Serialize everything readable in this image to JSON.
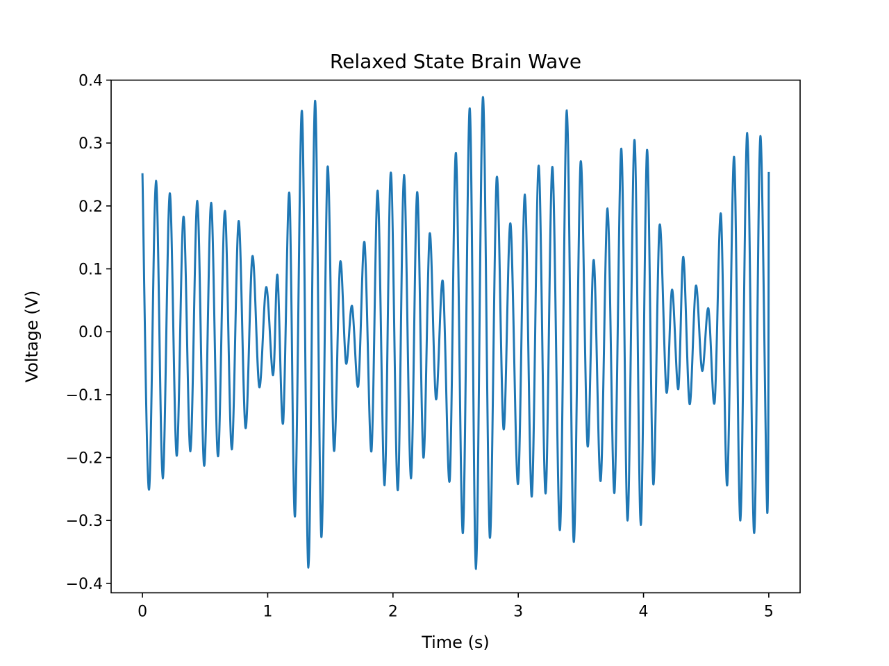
{
  "chart_data": {
    "type": "line",
    "title": "Relaxed State Brain Wave",
    "xlabel": "Time (s)",
    "ylabel": "Voltage (V)",
    "xlim": [
      -0.25,
      5.25
    ],
    "ylim": [
      -0.415,
      0.4
    ],
    "xticks": [
      {
        "value": 0,
        "label": "0"
      },
      {
        "value": 1,
        "label": "1"
      },
      {
        "value": 2,
        "label": "2"
      },
      {
        "value": 3,
        "label": "3"
      },
      {
        "value": 4,
        "label": "4"
      },
      {
        "value": 5,
        "label": "5"
      }
    ],
    "yticks": [
      {
        "value": 0.4,
        "label": "0.4"
      },
      {
        "value": 0.3,
        "label": "0.3"
      },
      {
        "value": 0.2,
        "label": "0.2"
      },
      {
        "value": 0.1,
        "label": "0.1"
      },
      {
        "value": 0.0,
        "label": "0.0"
      },
      {
        "value": -0.1,
        "label": "−0.1"
      },
      {
        "value": -0.2,
        "label": "−0.2"
      },
      {
        "value": -0.3,
        "label": "−0.3"
      },
      {
        "value": -0.4,
        "label": "−0.4"
      }
    ],
    "grid": false,
    "legend": "none",
    "series": [
      {
        "color": "#1f77b4",
        "x": [
          0.0,
          0.052,
          0.108,
          0.162,
          0.218,
          0.273,
          0.328,
          0.383,
          0.438,
          0.493,
          0.548,
          0.603,
          0.658,
          0.713,
          0.768,
          0.823,
          0.878,
          0.933,
          0.988,
          1.043,
          1.078,
          1.123,
          1.173,
          1.218,
          1.273,
          1.325,
          1.378,
          1.428,
          1.478,
          1.528,
          1.578,
          1.625,
          1.673,
          1.723,
          1.773,
          1.828,
          1.878,
          1.933,
          1.983,
          2.038,
          2.088,
          2.143,
          2.193,
          2.243,
          2.293,
          2.343,
          2.398,
          2.453,
          2.503,
          2.558,
          2.613,
          2.663,
          2.718,
          2.773,
          2.828,
          2.883,
          2.938,
          2.998,
          3.053,
          3.108,
          3.163,
          3.218,
          3.273,
          3.333,
          3.388,
          3.443,
          3.498,
          3.553,
          3.603,
          3.658,
          3.713,
          3.768,
          3.823,
          3.873,
          3.928,
          3.978,
          4.028,
          4.078,
          4.128,
          4.183,
          4.228,
          4.278,
          4.318,
          4.368,
          4.418,
          4.468,
          4.518,
          4.568,
          4.618,
          4.668,
          4.723,
          4.773,
          4.828,
          4.883,
          4.933,
          4.988,
          5.0
        ],
        "y": [
          0.252,
          -0.251,
          0.24,
          -0.233,
          0.22,
          -0.197,
          0.183,
          -0.19,
          0.208,
          -0.213,
          0.205,
          -0.198,
          0.192,
          -0.187,
          0.176,
          -0.153,
          0.12,
          -0.088,
          0.071,
          -0.069,
          0.09,
          -0.145,
          0.22,
          -0.293,
          0.351,
          -0.375,
          0.367,
          -0.326,
          0.262,
          -0.188,
          0.11,
          -0.05,
          0.041,
          -0.086,
          0.142,
          -0.19,
          0.224,
          -0.244,
          0.253,
          -0.252,
          0.249,
          -0.233,
          0.222,
          -0.2,
          0.156,
          -0.107,
          0.08,
          -0.236,
          0.284,
          -0.32,
          0.355,
          -0.377,
          0.373,
          -0.327,
          0.245,
          -0.155,
          0.172,
          -0.242,
          0.218,
          -0.262,
          0.264,
          -0.257,
          0.262,
          -0.315,
          0.352,
          -0.334,
          0.27,
          -0.181,
          0.114,
          -0.237,
          0.196,
          -0.256,
          0.291,
          -0.3,
          0.305,
          -0.307,
          0.289,
          -0.242,
          0.169,
          -0.096,
          0.067,
          -0.091,
          0.119,
          -0.115,
          0.073,
          -0.062,
          0.037,
          -0.112,
          0.187,
          -0.244,
          0.278,
          -0.3,
          0.316,
          -0.32,
          0.311,
          -0.288,
          0.254
        ]
      }
    ]
  }
}
